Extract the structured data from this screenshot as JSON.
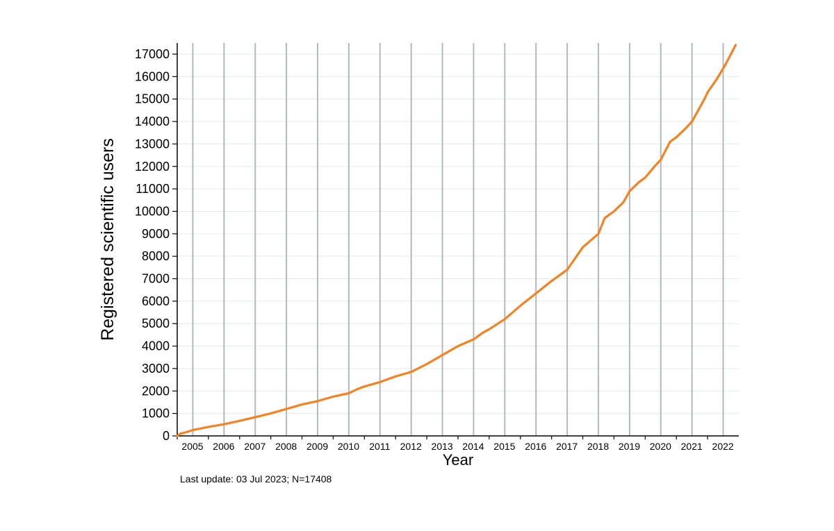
{
  "chart_data": {
    "type": "line",
    "xlabel": "Year",
    "ylabel": "Registered scientific users",
    "note": "Last update: 03 Jul 2023; N=17408",
    "x_tick_labels": [
      "2005",
      "2006",
      "2007",
      "2008",
      "2009",
      "2010",
      "2011",
      "2012",
      "2013",
      "2014",
      "2015",
      "2016",
      "2017",
      "2018",
      "2019",
      "2020",
      "2021",
      "2022"
    ],
    "y_ticks": [
      0,
      1000,
      2000,
      3000,
      4000,
      5000,
      6000,
      7000,
      8000,
      9000,
      10000,
      11000,
      12000,
      13000,
      14000,
      15000,
      16000,
      17000
    ],
    "xlim": [
      2005.0,
      2023.0
    ],
    "ylim": [
      0,
      17500
    ],
    "vertical_grid_at": [
      2005.5,
      2006.5,
      2007.5,
      2008.5,
      2009.5,
      2010.5,
      2011.5,
      2012.5,
      2013.5,
      2014.5,
      2015.5,
      2016.5,
      2017.5,
      2018.5,
      2019.5,
      2020.5,
      2021.5,
      2022.5
    ],
    "horizontal_grid": true,
    "line_color": "#f5821f",
    "series": [
      {
        "x": [
          2005.0,
          2005.1,
          2005.3,
          2005.5,
          2006.0,
          2006.5,
          2007.0,
          2007.5,
          2008.0,
          2008.5,
          2009.0,
          2009.5,
          2010.0,
          2010.5,
          2010.8,
          2011.0,
          2011.5,
          2012.0,
          2012.5,
          2013.0,
          2013.5,
          2014.0,
          2014.5,
          2014.8,
          2015.0,
          2015.5,
          2016.0,
          2016.5,
          2017.0,
          2017.5,
          2017.6,
          2018.0,
          2018.5,
          2018.7,
          2019.0,
          2019.3,
          2019.5,
          2019.8,
          2020.0,
          2020.3,
          2020.5,
          2020.8,
          2021.0,
          2021.3,
          2021.5,
          2021.9,
          2022.0,
          2022.3,
          2022.6,
          2022.9
        ],
        "y": [
          0,
          100,
          170,
          260,
          400,
          520,
          670,
          830,
          1000,
          1200,
          1400,
          1550,
          1750,
          1900,
          2100,
          2200,
          2400,
          2650,
          2850,
          3200,
          3600,
          4000,
          4300,
          4600,
          4750,
          5200,
          5800,
          6350,
          6900,
          7400,
          7600,
          8400,
          9000,
          9700,
          10000,
          10400,
          10900,
          11300,
          11500,
          12000,
          12300,
          13100,
          13300,
          13700,
          14000,
          15000,
          15300,
          15900,
          16600,
          17408
        ]
      }
    ]
  }
}
